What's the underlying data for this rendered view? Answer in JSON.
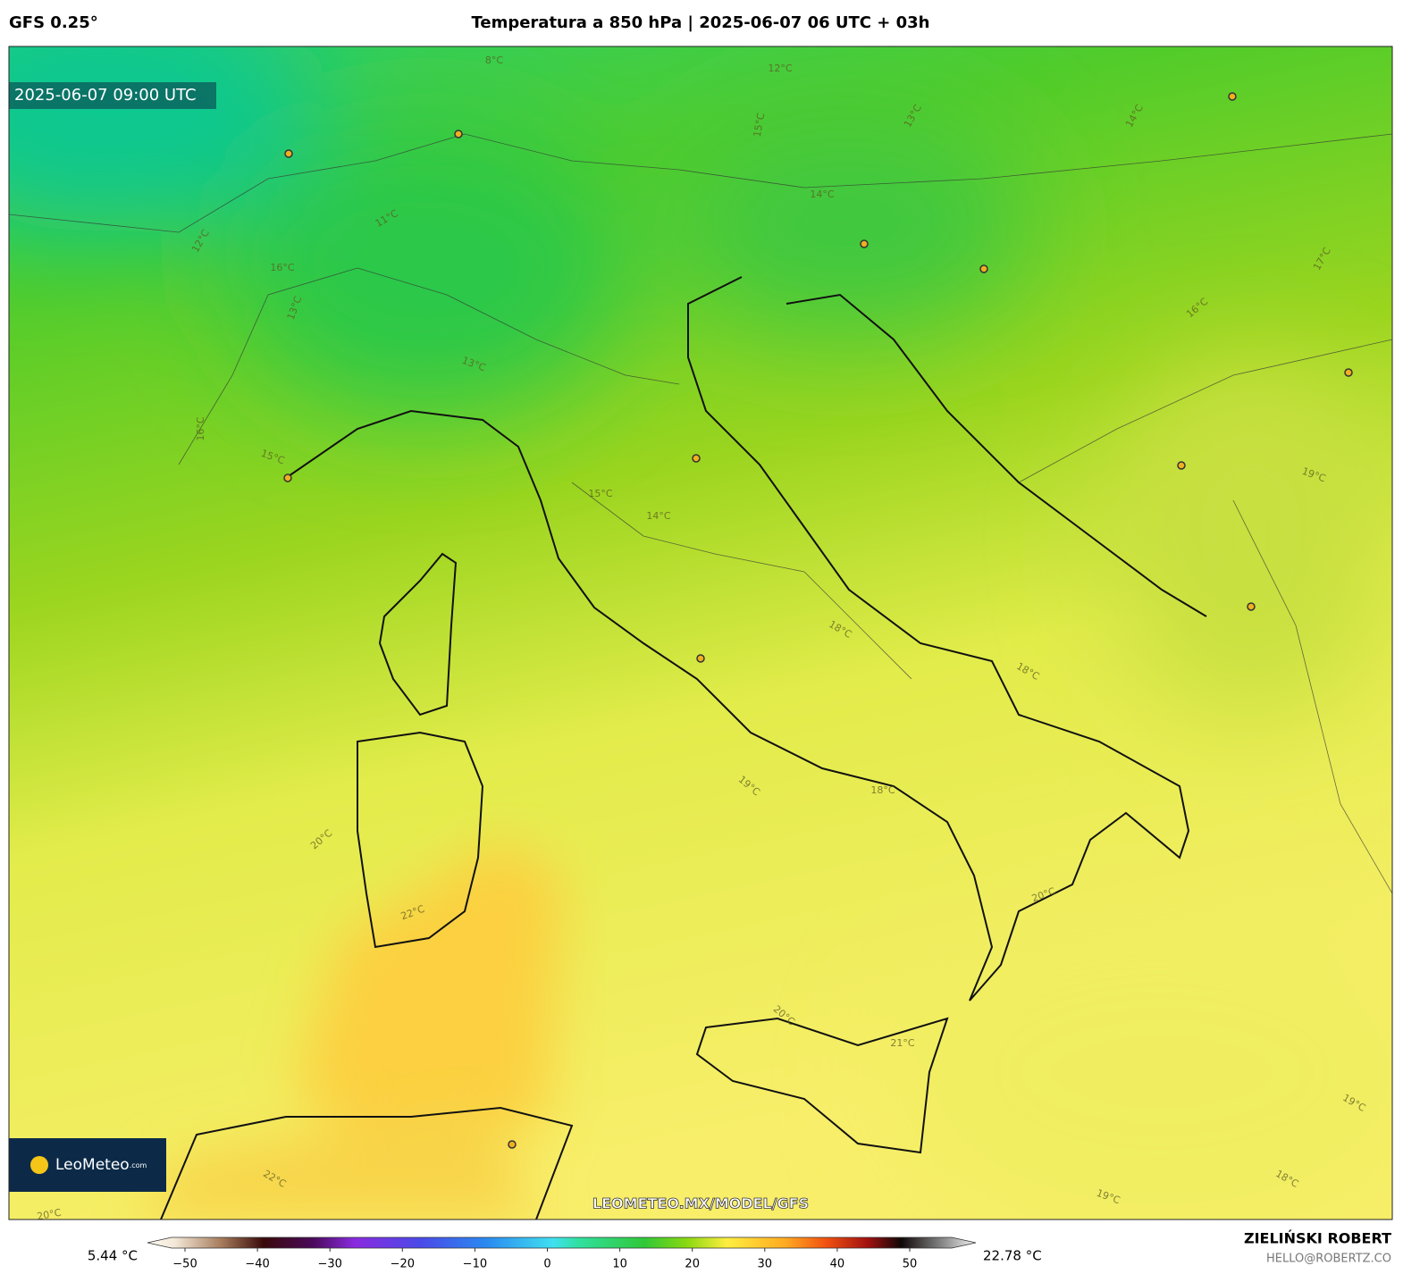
{
  "header": {
    "model": "GFS 0.25°",
    "title": "Temperatura a 850 hPa | 2025-06-07 06 UTC + 03h"
  },
  "map": {
    "valid_time": "2025-06-07 09:00 UTC",
    "watermark": "LEOMETEO.MX/MODEL/GFS",
    "logo": "LeoMeteo",
    "logo_suffix": ".com",
    "contour_labels": [
      "8°C",
      "12°C",
      "13°C",
      "14°C",
      "15°C",
      "16°C",
      "11°C",
      "12°C",
      "13°C",
      "13°C",
      "16°C",
      "15°C",
      "15°C",
      "14°C",
      "14°C",
      "18°C",
      "18°C",
      "19°C",
      "18°C",
      "20°C",
      "22°C",
      "20°C",
      "20°C",
      "21°C",
      "19°C",
      "17°C",
      "16°C",
      "19°C",
      "18°C",
      "19°C",
      "22°C",
      "20°C"
    ]
  },
  "colorbar": {
    "min_label": "5.44 °C",
    "max_label": "22.78 °C",
    "ticks": [
      {
        "value": -50,
        "label": "−50"
      },
      {
        "value": -40,
        "label": "−40"
      },
      {
        "value": -30,
        "label": "−30"
      },
      {
        "value": -20,
        "label": "−20"
      },
      {
        "value": -10,
        "label": "−10"
      },
      0,
      10,
      20,
      30,
      40,
      50
    ]
  },
  "credit": {
    "name": "ZIELIŃSKI ROBERT",
    "email": "HELLO@ROBERTZ.CO"
  }
}
